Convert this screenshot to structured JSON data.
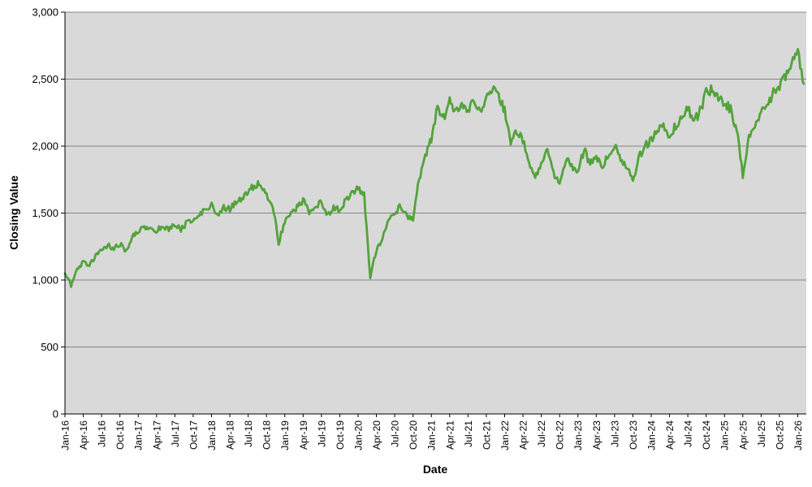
{
  "chart_data": {
    "type": "line",
    "title": "",
    "xlabel": "Date",
    "ylabel": "Closing Value",
    "ylim": [
      0,
      3000
    ],
    "yticks": [
      0,
      500,
      1000,
      1500,
      2000,
      2500,
      3000
    ],
    "ytick_labels": [
      "0",
      "500",
      "1,000",
      "1,500",
      "2,000",
      "2,500",
      "3,000"
    ],
    "xtick_labels": [
      "Jan-16",
      "Apr-16",
      "Jul-16",
      "Oct-16",
      "Jan-17",
      "Apr-17",
      "Jul-17",
      "Oct-17",
      "Jan-18",
      "Apr-18",
      "Jul-18",
      "Oct-18",
      "Jan-19",
      "Apr-19",
      "Jul-19",
      "Oct-19",
      "Jan-20",
      "Apr-20",
      "Jul-20",
      "Oct-20",
      "Jan-21",
      "Apr-21",
      "Jul-21",
      "Oct-21",
      "Jan-22",
      "Apr-22",
      "Jul-22",
      "Oct-22",
      "Jan-23",
      "Apr-23",
      "Jul-23",
      "Oct-23",
      "Jan-24",
      "Apr-24",
      "Jul-24",
      "Oct-24",
      "Jan-25",
      "Apr-25",
      "Jul-25",
      "Oct-25",
      "Jan-26"
    ],
    "xtick_interval_months": 3,
    "legend": "none",
    "grid": "horizontal",
    "plot_bg_color": "#d9d9d9",
    "gridline_color": "#858585",
    "axis_color": "#000000",
    "series": [
      {
        "name": "Closing Value",
        "color": "#53a33b",
        "start": "Jan-16",
        "interval": "monthly",
        "values": [
          1050,
          960,
          1080,
          1130,
          1110,
          1170,
          1230,
          1260,
          1230,
          1270,
          1210,
          1330,
          1370,
          1395,
          1380,
          1375,
          1400,
          1385,
          1405,
          1380,
          1425,
          1455,
          1500,
          1515,
          1570,
          1480,
          1540,
          1530,
          1590,
          1610,
          1670,
          1700,
          1725,
          1640,
          1560,
          1280,
          1430,
          1510,
          1545,
          1595,
          1500,
          1555,
          1585,
          1490,
          1545,
          1520,
          1595,
          1645,
          1690,
          1630,
          1020,
          1230,
          1310,
          1440,
          1500,
          1560,
          1470,
          1450,
          1760,
          1920,
          2060,
          2290,
          2210,
          2340,
          2260,
          2310,
          2270,
          2330,
          2240,
          2360,
          2445,
          2390,
          2260,
          2010,
          2110,
          2050,
          1890,
          1755,
          1860,
          1995,
          1790,
          1745,
          1905,
          1845,
          1815,
          1975,
          1860,
          1915,
          1855,
          1945,
          2005,
          1895,
          1845,
          1725,
          1915,
          2005,
          2040,
          2105,
          2165,
          2060,
          2155,
          2215,
          2295,
          2175,
          2265,
          2395,
          2425,
          2355,
          2325,
          2275,
          2120,
          1785,
          2075,
          2160,
          2255,
          2305,
          2395,
          2455,
          2520,
          2625,
          2715,
          2465
        ]
      }
    ]
  }
}
